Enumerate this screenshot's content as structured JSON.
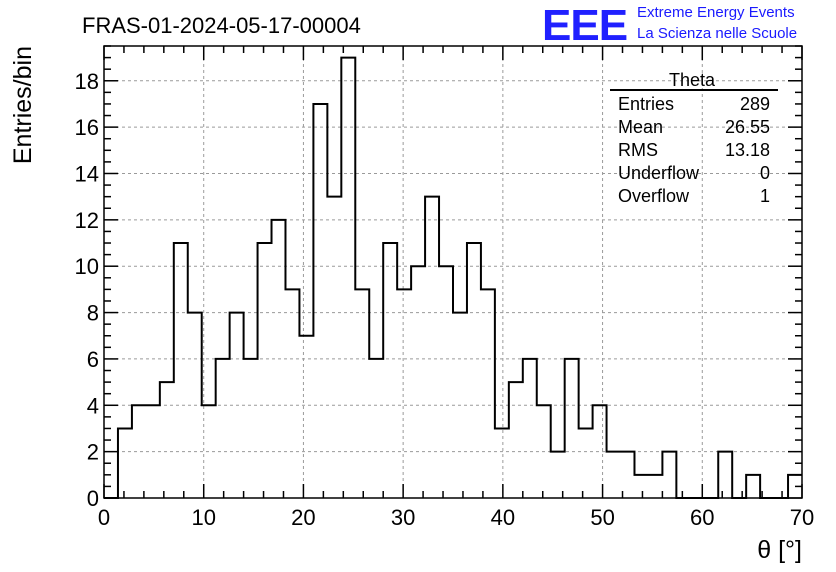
{
  "chart_data": {
    "type": "histogram",
    "title": "FRAS-01-2024-05-17-00004",
    "xlabel": "θ [°]",
    "ylabel": "Entries/bin",
    "xlim": [
      0,
      70
    ],
    "ylim": [
      0,
      19.5
    ],
    "x_ticks": [
      0,
      10,
      20,
      30,
      40,
      50,
      60,
      70
    ],
    "y_ticks": [
      0,
      2,
      4,
      6,
      8,
      10,
      12,
      14,
      16,
      18
    ],
    "grid": true,
    "bin_edges_start": 0,
    "bin_width": 1.4,
    "values": [
      0,
      3,
      4,
      4,
      5,
      11,
      8,
      4,
      6,
      8,
      6,
      11,
      12,
      9,
      7,
      17,
      13,
      19,
      9,
      6,
      11,
      9,
      10,
      13,
      10,
      8,
      11,
      9,
      3,
      5,
      6,
      4,
      2,
      6,
      3,
      4,
      2,
      2,
      1,
      1,
      2,
      0,
      0,
      0,
      2,
      0,
      1,
      0,
      0,
      1
    ],
    "stats": {
      "name": "Theta",
      "rows": [
        {
          "label": "Entries",
          "value": "289"
        },
        {
          "label": "Mean",
          "value": "26.55"
        },
        {
          "label": "RMS",
          "value": "13.18"
        },
        {
          "label": "Underflow",
          "value": "0"
        },
        {
          "label": "Overflow",
          "value": "1"
        }
      ]
    }
  },
  "logo": {
    "mark": "EEE",
    "line1": "Extreme Energy Events",
    "line2": "La Scienza nelle Scuole"
  },
  "colors": {
    "line": "#000000",
    "grid": "#9a9a9a",
    "logo": "#2020ff"
  }
}
